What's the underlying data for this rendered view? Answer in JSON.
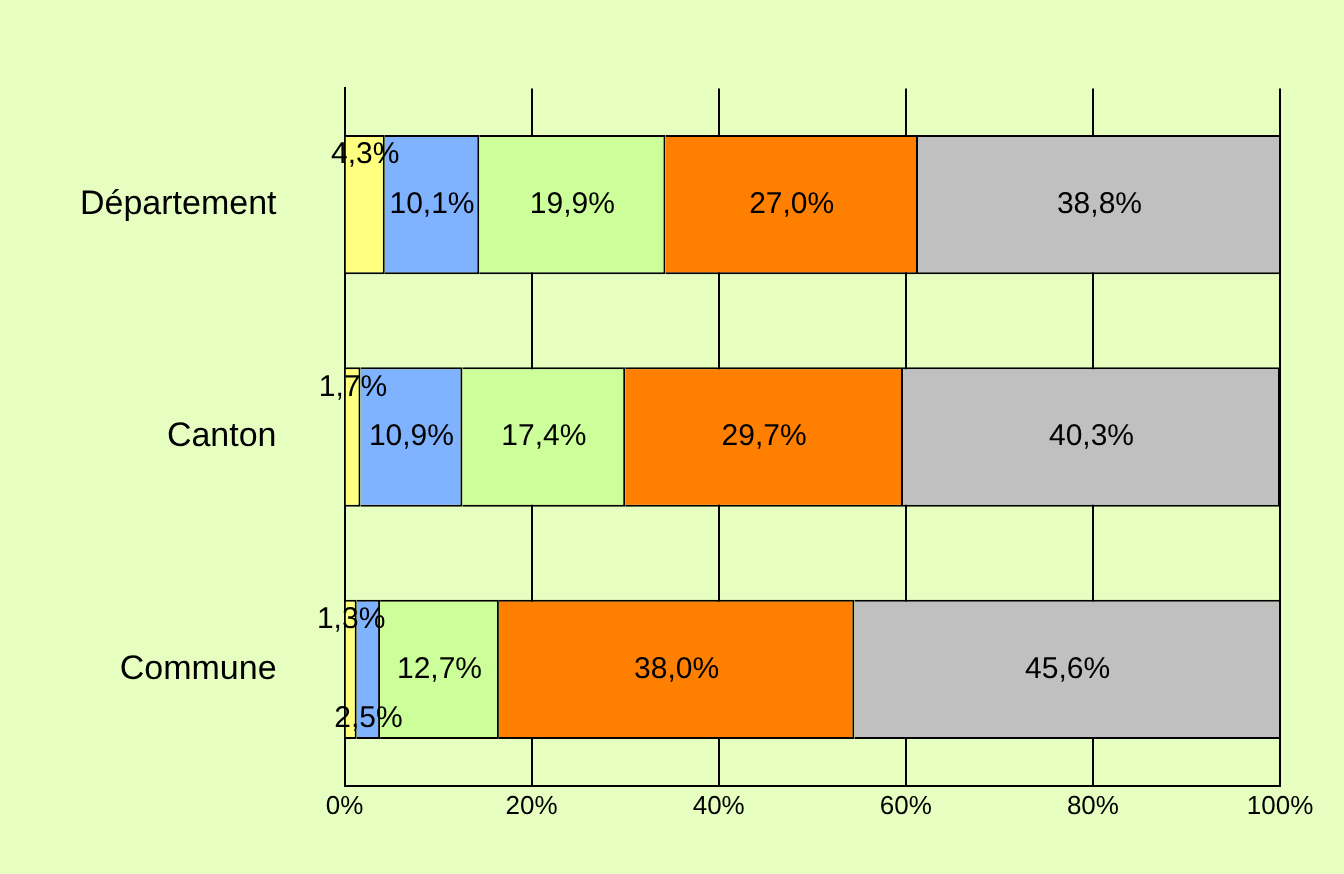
{
  "chart_data": {
    "type": "bar",
    "orientation": "horizontal",
    "stacked": true,
    "categories": [
      "Département",
      "Canton",
      "Commune"
    ],
    "series": [
      {
        "color": "#ffff80",
        "values": [
          4.3,
          1.7,
          1.3
        ],
        "value_labels": [
          "4,3%",
          "1,7%",
          "1,3%"
        ]
      },
      {
        "color": "#80b3ff",
        "values": [
          10.1,
          10.9,
          2.5
        ],
        "value_labels": [
          "10,1%",
          "10,9%",
          "2,5%"
        ]
      },
      {
        "color": "#ccff99",
        "values": [
          19.9,
          17.4,
          12.7
        ],
        "value_labels": [
          "19,9%",
          "17,4%",
          "12,7%"
        ]
      },
      {
        "color": "#ff8000",
        "values": [
          27.0,
          29.7,
          38.0
        ],
        "value_labels": [
          "27,0%",
          "29,7%",
          "38,0%"
        ]
      },
      {
        "color": "#c0c0c0",
        "values": [
          38.8,
          40.3,
          45.6
        ],
        "value_labels": [
          "38,8%",
          "40,3%",
          "45,6%"
        ]
      }
    ],
    "xlim": [
      0,
      100
    ],
    "xticks": [
      {
        "value": 0,
        "label": "0%"
      },
      {
        "value": 20,
        "label": "20%"
      },
      {
        "value": 40,
        "label": "40%"
      },
      {
        "value": 60,
        "label": "60%"
      },
      {
        "value": 80,
        "label": "80%"
      },
      {
        "value": 100,
        "label": "100%"
      }
    ],
    "grid": "x",
    "legend": false
  }
}
